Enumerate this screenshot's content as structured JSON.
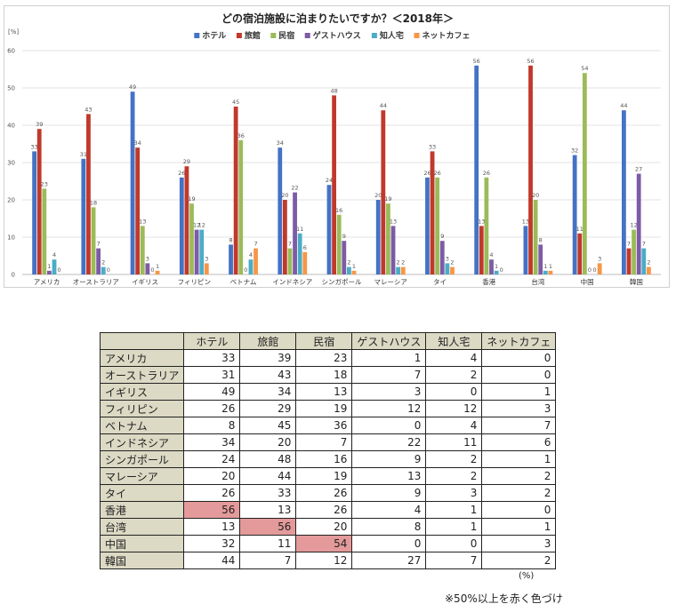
{
  "chart_data": {
    "type": "bar",
    "title": "どの宿泊施設に泊まりたいですか？＜2018年＞",
    "ylabel": "[%]",
    "ylim": [
      0,
      60
    ],
    "yticks": [
      0,
      10,
      20,
      30,
      40,
      50,
      60
    ],
    "grid": true,
    "legend_position": "top",
    "categories": [
      "アメリカ",
      "オーストラリア",
      "イギリス",
      "フィリピン",
      "ベトナム",
      "インドネシア",
      "シンガポール",
      "マレーシア",
      "タイ",
      "香港",
      "台湾",
      "中国",
      "韓国"
    ],
    "series": [
      {
        "name": "ホテル",
        "color": "#4472c4",
        "values": [
          33,
          31,
          49,
          26,
          8,
          34,
          24,
          20,
          26,
          56,
          13,
          32,
          44
        ]
      },
      {
        "name": "旅館",
        "color": "#c0392b",
        "values": [
          39,
          43,
          34,
          29,
          45,
          20,
          48,
          44,
          33,
          13,
          56,
          11,
          7
        ]
      },
      {
        "name": "民宿",
        "color": "#9bbb59",
        "values": [
          23,
          18,
          13,
          19,
          36,
          7,
          16,
          19,
          26,
          26,
          20,
          54,
          12
        ]
      },
      {
        "name": "ゲストハウス",
        "color": "#7d5ba6",
        "values": [
          1,
          7,
          3,
          12,
          0,
          22,
          9,
          13,
          9,
          4,
          8,
          0,
          27
        ]
      },
      {
        "name": "知人宅",
        "color": "#4bacc6",
        "values": [
          4,
          2,
          0,
          12,
          4,
          11,
          2,
          2,
          3,
          1,
          1,
          0,
          7
        ]
      },
      {
        "name": "ネットカフェ",
        "color": "#f79646",
        "values": [
          0,
          0,
          1,
          3,
          7,
          6,
          1,
          2,
          2,
          0,
          1,
          3,
          2
        ]
      }
    ]
  },
  "table": {
    "headers": [
      "",
      "ホテル",
      "旅館",
      "民宿",
      "ゲストハウス",
      "知人宅",
      "ネットカフェ"
    ],
    "rows": [
      {
        "label": "アメリカ",
        "values": [
          33,
          39,
          23,
          1,
          4,
          0
        ]
      },
      {
        "label": "オーストラリア",
        "values": [
          31,
          43,
          18,
          7,
          2,
          0
        ]
      },
      {
        "label": "イギリス",
        "values": [
          49,
          34,
          13,
          3,
          0,
          1
        ]
      },
      {
        "label": "フィリピン",
        "values": [
          26,
          29,
          19,
          12,
          12,
          3
        ]
      },
      {
        "label": "ベトナム",
        "values": [
          8,
          45,
          36,
          0,
          4,
          7
        ]
      },
      {
        "label": "インドネシア",
        "values": [
          34,
          20,
          7,
          22,
          11,
          6
        ]
      },
      {
        "label": "シンガポール",
        "values": [
          24,
          48,
          16,
          9,
          2,
          1
        ]
      },
      {
        "label": "マレーシア",
        "values": [
          20,
          44,
          19,
          13,
          2,
          2
        ]
      },
      {
        "label": "タイ",
        "values": [
          26,
          33,
          26,
          9,
          3,
          2
        ]
      },
      {
        "label": "香港",
        "values": [
          56,
          13,
          26,
          4,
          1,
          0
        ]
      },
      {
        "label": "台湾",
        "values": [
          13,
          56,
          20,
          8,
          1,
          1
        ]
      },
      {
        "label": "中国",
        "values": [
          32,
          11,
          54,
          0,
          0,
          3
        ]
      },
      {
        "label": "韓国",
        "values": [
          44,
          7,
          12,
          27,
          7,
          2
        ]
      }
    ],
    "highlight_color": "#e49a9a",
    "unit": "(%)"
  },
  "note": "※50%以上を赤く色づけ"
}
